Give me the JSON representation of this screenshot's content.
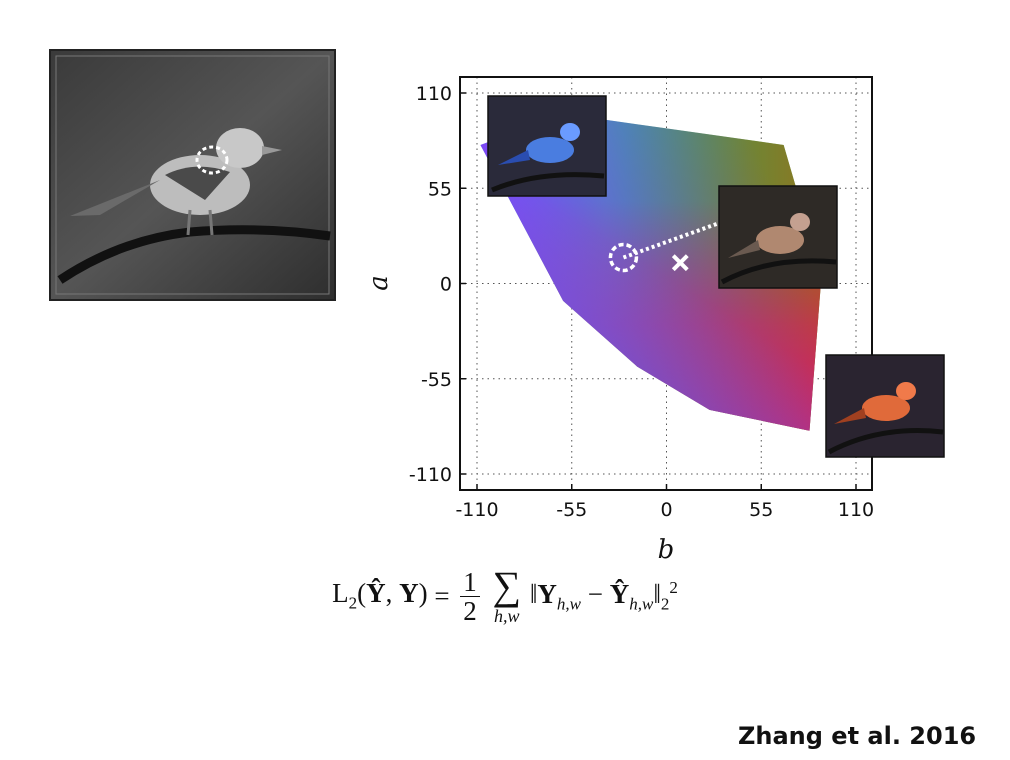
{
  "chart_data": {
    "type": "scatter",
    "xlabel": "b",
    "ylabel": "a",
    "xlim": [
      -110,
      110
    ],
    "ylim": [
      110,
      -110
    ],
    "x_ticks": [
      "-110",
      "-55",
      "0",
      "55",
      "110"
    ],
    "y_ticks": [
      "-110",
      "-55",
      "0",
      "55",
      "110"
    ],
    "grid": true,
    "grid_style": "dotted",
    "gamut_polygon": [
      [
        -108,
        80
      ],
      [
        -60,
        98
      ],
      [
        68,
        80
      ],
      [
        90,
        5
      ],
      [
        83,
        -85
      ],
      [
        25,
        -73
      ],
      [
        -17,
        -48
      ],
      [
        -60,
        -10
      ],
      [
        -108,
        80
      ]
    ],
    "markers": [
      {
        "label": "circle",
        "b": -25,
        "a": 15
      },
      {
        "label": "cross",
        "b": 8,
        "a": 12
      },
      {
        "label": "circle",
        "b": 42,
        "a": 39
      }
    ]
  },
  "formula": {
    "lhs": "L",
    "lhs_sub": "2",
    "args_y_hat": "Ŷ",
    "args_y": "Y",
    "equals": "=",
    "frac_num": "1",
    "frac_den": "2",
    "sum_sign": "∑",
    "sum_index": "h,w",
    "term_y": "Y",
    "term_hat": "Ŷ",
    "sub_hw": "h,w",
    "norm_sub": "2",
    "norm_sup": "2"
  },
  "citation": "Zhang et al. 2016",
  "colors": {
    "background": "#ffffff",
    "text": "#111111",
    "marker": "#ffffff"
  },
  "photos": [
    {
      "name": "grayscale-input-bird",
      "tint": "#8a8a8a"
    },
    {
      "name": "blue-bird",
      "tint": "#4a7de0"
    },
    {
      "name": "natural-bird",
      "tint": "#b08870"
    },
    {
      "name": "red-bird",
      "tint": "#e06a3a"
    }
  ]
}
